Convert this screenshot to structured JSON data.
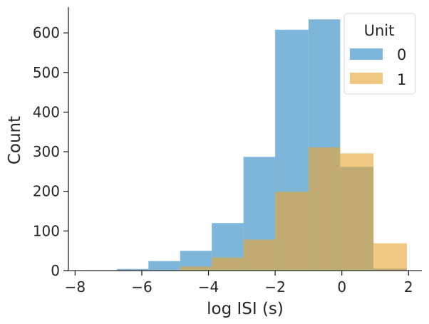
{
  "chart_data": {
    "type": "bar",
    "subtype": "overlaid-histogram",
    "xlabel": "log ISI (s)",
    "ylabel": "Count",
    "xlim": [
      -8.2,
      2.4
    ],
    "ylim": [
      0,
      665
    ],
    "xticks": [
      -8,
      -6,
      -4,
      -2,
      0,
      2
    ],
    "xtick_labels": [
      "−8",
      "−6",
      "−4",
      "−2",
      "0",
      "2"
    ],
    "yticks": [
      0,
      100,
      200,
      300,
      400,
      500,
      600
    ],
    "ytick_labels": [
      "0",
      "100",
      "200",
      "300",
      "400",
      "500",
      "600"
    ],
    "legend": {
      "title": "Unit",
      "position": "top-right"
    },
    "series": [
      {
        "name": "0",
        "color": "#4c9acb",
        "opacity": 0.72,
        "bins": [
          [
            -7.7,
            -6.75,
            1
          ],
          [
            -6.75,
            -5.8,
            4
          ],
          [
            -5.8,
            -4.85,
            24
          ],
          [
            -4.85,
            -3.9,
            50
          ],
          [
            -3.9,
            -2.95,
            120
          ],
          [
            -2.95,
            -2.0,
            287
          ],
          [
            -2.0,
            -1.0,
            608
          ],
          [
            -1.0,
            -0.05,
            634
          ],
          [
            -0.05,
            0.95,
            262
          ],
          [
            0.95,
            1.95,
            5
          ]
        ]
      },
      {
        "name": "1",
        "color": "#e8a634",
        "opacity": 0.62,
        "bins": [
          [
            -4.85,
            -3.9,
            10
          ],
          [
            -3.9,
            -2.95,
            33
          ],
          [
            -2.95,
            -2.0,
            78
          ],
          [
            -2.0,
            -1.0,
            199
          ],
          [
            -1.0,
            -0.05,
            311
          ],
          [
            -0.05,
            0.95,
            296
          ],
          [
            0.95,
            1.95,
            69
          ]
        ]
      }
    ]
  }
}
